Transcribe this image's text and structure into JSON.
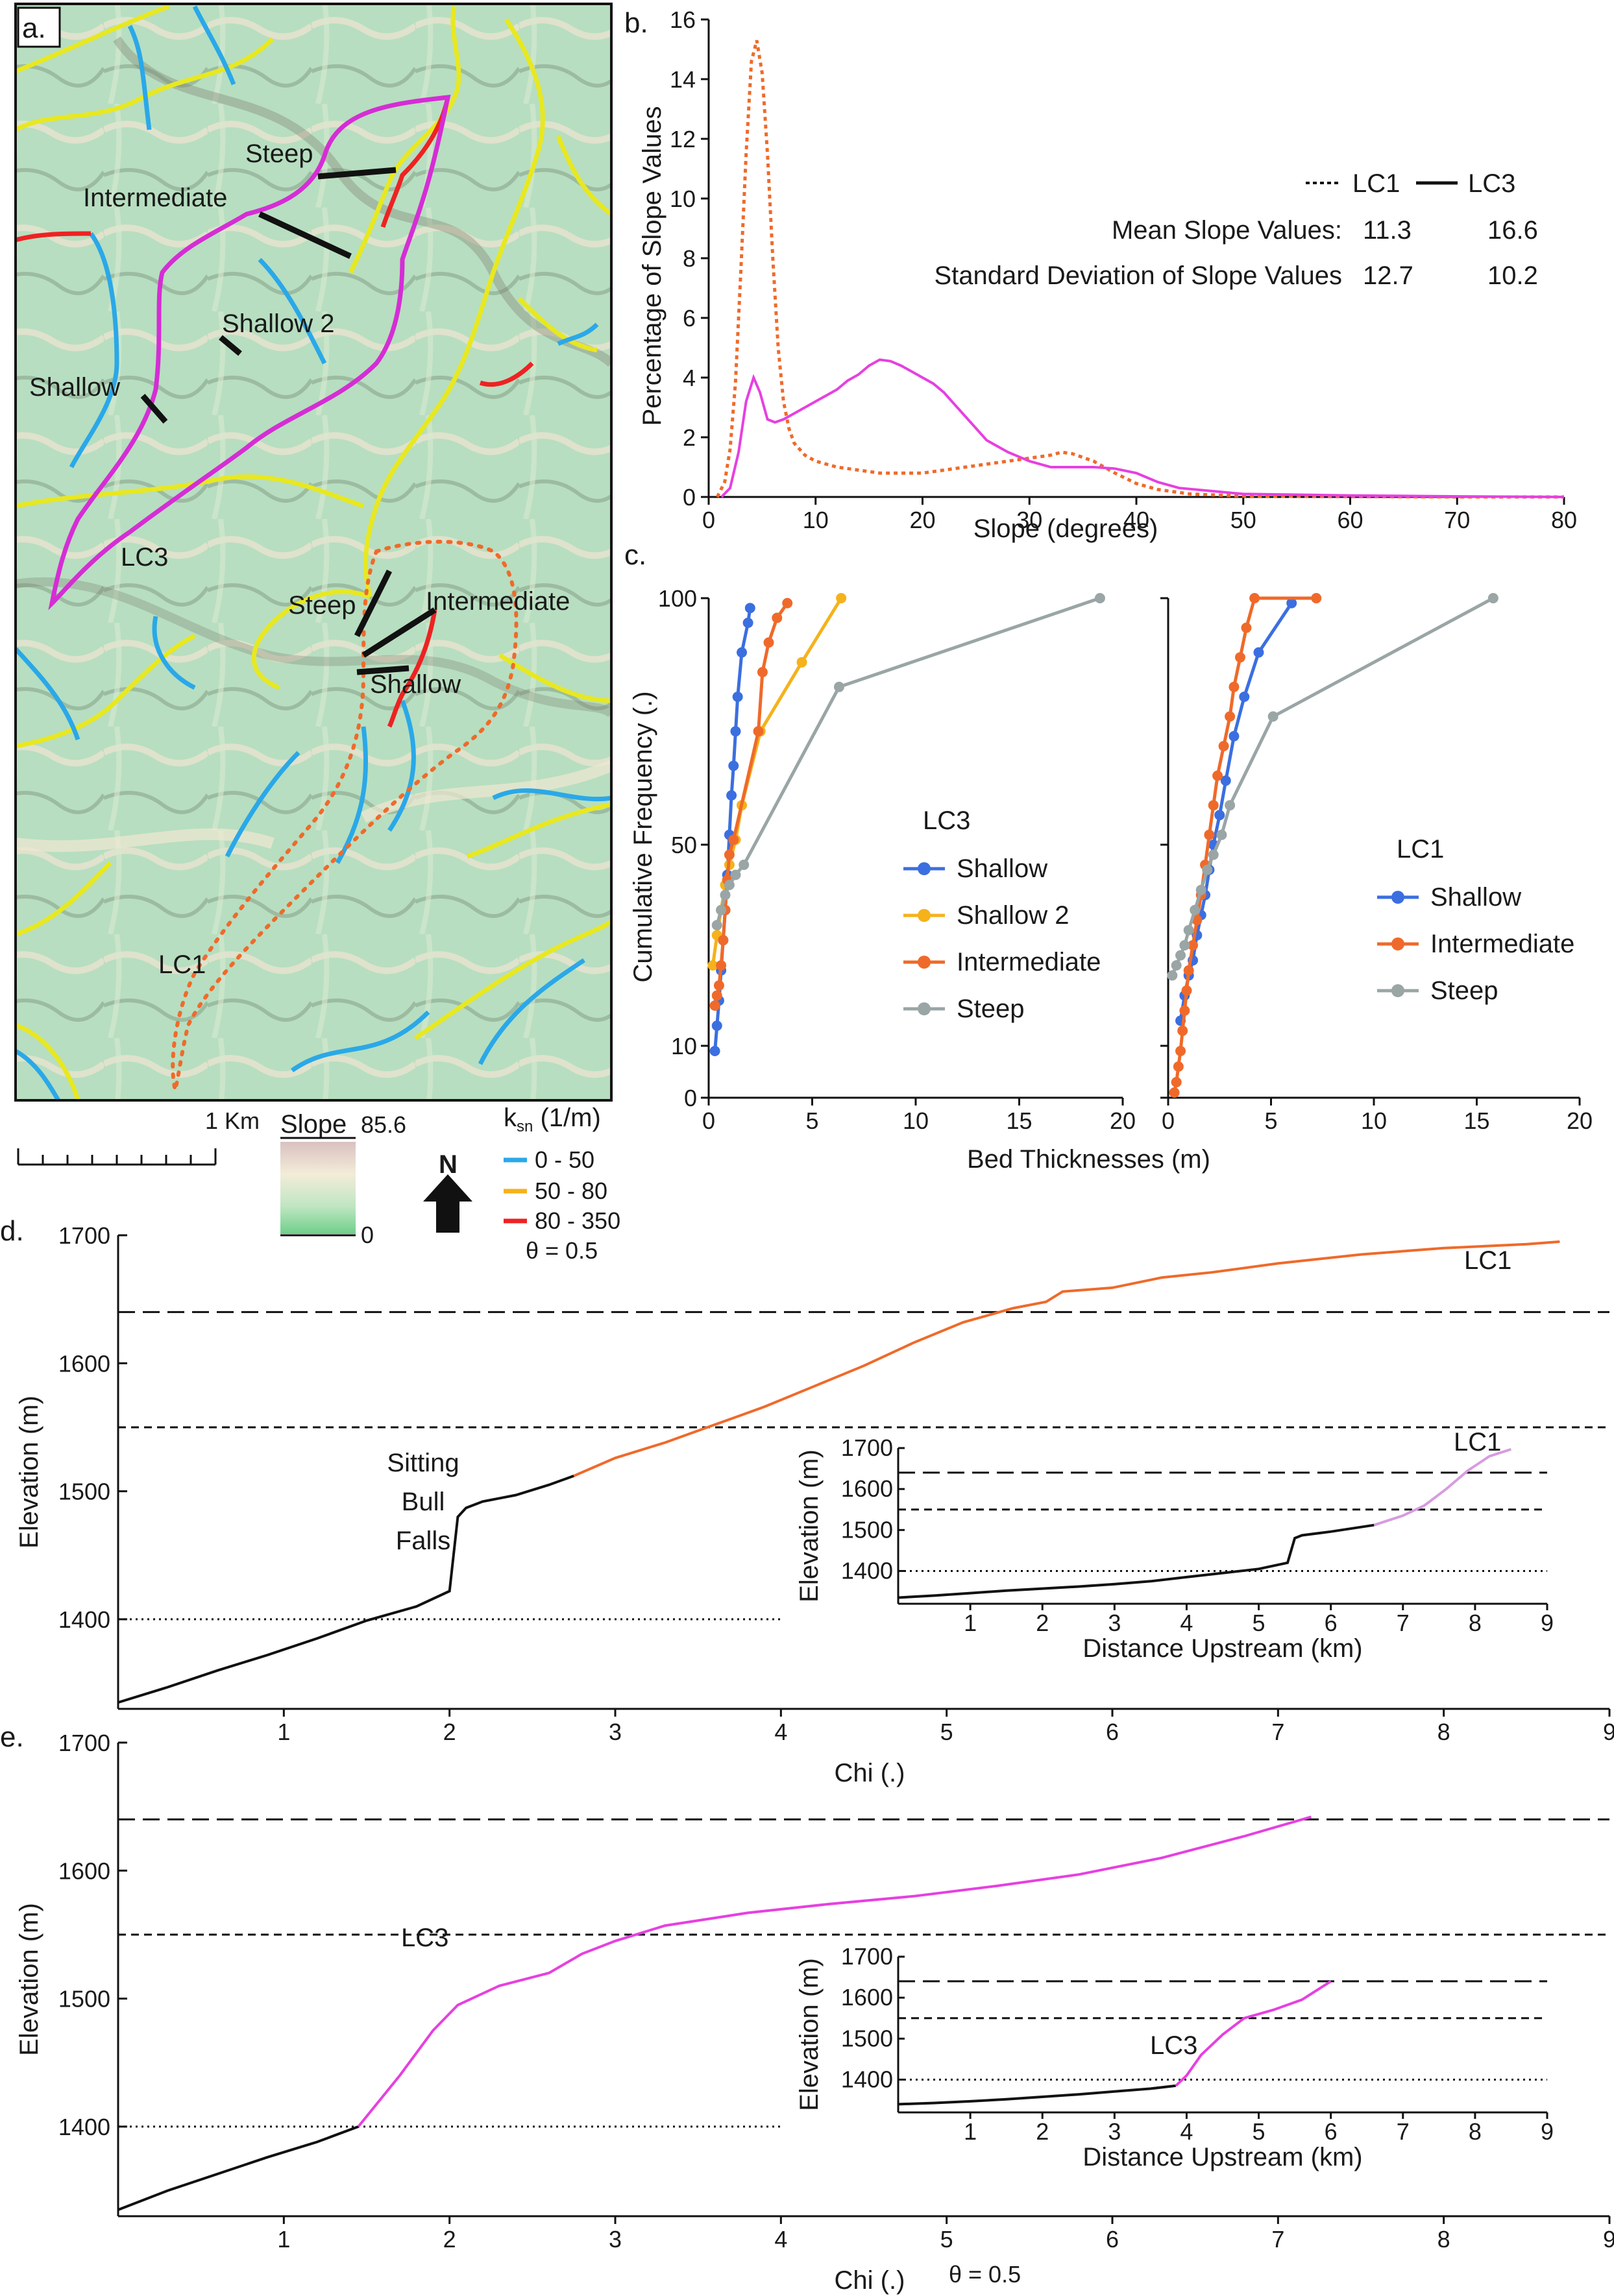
{
  "panel_labels": {
    "a": "a.",
    "b": "b.",
    "c": "c.",
    "d": "d.",
    "e": "e."
  },
  "colors": {
    "lc1": "#ef6a2a",
    "lc3": "#e640e0",
    "ksn_low": "#2aa8e8",
    "ksn_mid": "#e8e820",
    "ksn_high": "#ee2222",
    "shallow": "#3b6fe0",
    "shallow2": "#f5b21b",
    "intermediate": "#ef6a2a",
    "steep": "#9aa5a5",
    "map_bg": "#b9dfc2"
  },
  "map": {
    "labels": {
      "steep_lc3": "Steep",
      "intermediate_lc3": "Intermediate",
      "shallow2_lc3": "Shallow 2",
      "shallow_lc3": "Shallow",
      "lc3": "LC3",
      "steep_lc1": "Steep",
      "intermediate_lc1": "Intermediate",
      "shallow_lc1": "Shallow",
      "lc1": "LC1"
    },
    "scale_label": "1 Km",
    "slope_legend": {
      "title": "Slope",
      "max": "85.6",
      "min": "0"
    },
    "north": "N",
    "ksn_legend": {
      "title": "k",
      "title_sub": "sn",
      "title_unit": " (1/m)",
      "classes": [
        "0 - 50",
        "50 - 80",
        "80 - 350"
      ],
      "theta": "θ = 0.5"
    }
  },
  "chart_data": [
    {
      "id": "b",
      "type": "line",
      "xlabel": "Slope (degrees)",
      "ylabel": "Percentage of Slope Values",
      "xlim": [
        0,
        80
      ],
      "ylim": [
        0,
        16
      ],
      "xticks": [
        0,
        10,
        20,
        30,
        40,
        50,
        60,
        70,
        80
      ],
      "yticks": [
        0,
        2,
        4,
        6,
        8,
        10,
        12,
        14,
        16
      ],
      "legend": {
        "lc1": "LC1",
        "lc3": "LC3"
      },
      "stats": {
        "mean_label": "Mean Slope Values:",
        "mean_lc1": "11.3",
        "mean_lc3": "16.6",
        "sd_label": "Standard Deviation of Slope Values",
        "sd_lc1": "12.7",
        "sd_lc3": "10.2"
      },
      "series": [
        {
          "name": "LC1",
          "style": "dashed",
          "x": [
            0.8,
            1.5,
            2,
            2.5,
            3,
            3.5,
            4,
            4.5,
            5,
            5.5,
            6,
            6.5,
            7,
            7.5,
            8,
            9,
            10,
            12,
            14,
            16,
            18,
            20,
            22,
            24,
            26,
            28,
            30,
            32,
            33,
            34,
            36,
            38,
            40,
            42,
            45,
            50,
            60,
            70,
            80
          ],
          "y": [
            0,
            0.5,
            1.6,
            3.8,
            7.5,
            11.5,
            14.6,
            15.3,
            14.2,
            11.5,
            8.0,
            5.0,
            3.2,
            2.3,
            1.8,
            1.4,
            1.2,
            1.0,
            0.9,
            0.8,
            0.8,
            0.8,
            0.9,
            1.0,
            1.1,
            1.2,
            1.3,
            1.4,
            1.5,
            1.45,
            1.2,
            0.8,
            0.45,
            0.25,
            0.1,
            0.03,
            0.01,
            0,
            0
          ]
        },
        {
          "name": "LC3",
          "style": "solid",
          "x": [
            1.2,
            2,
            2.8,
            3.5,
            4.2,
            4.8,
            5.5,
            6.2,
            7,
            8,
            9,
            10,
            11,
            12,
            13,
            14,
            15,
            16,
            17,
            18,
            19,
            20,
            21,
            22,
            23,
            24,
            25,
            26,
            28,
            30,
            32,
            34,
            36,
            38,
            40,
            42,
            44,
            50,
            60,
            70,
            80
          ],
          "y": [
            0,
            0.3,
            1.5,
            3.2,
            4.0,
            3.5,
            2.6,
            2.5,
            2.6,
            2.8,
            3.0,
            3.2,
            3.4,
            3.6,
            3.9,
            4.1,
            4.4,
            4.6,
            4.55,
            4.4,
            4.2,
            4.0,
            3.8,
            3.5,
            3.1,
            2.7,
            2.3,
            1.9,
            1.5,
            1.2,
            1.0,
            1.0,
            1.0,
            0.95,
            0.8,
            0.5,
            0.3,
            0.1,
            0.05,
            0.02,
            0
          ]
        }
      ]
    },
    {
      "id": "c_lc3",
      "type": "line",
      "title": "LC3",
      "xlabel": "Bed Thicknesses (m)",
      "ylabel": "Cumulative Frequency (.)",
      "xlim": [
        0,
        20
      ],
      "xticks": [
        0,
        5,
        10,
        15,
        20
      ],
      "yticks": [
        0,
        10,
        50,
        100
      ],
      "series": [
        {
          "name": "Shallow",
          "x": [
            0.3,
            0.4,
            0.5,
            0.6,
            0.7,
            0.8,
            0.9,
            1.0,
            1.1,
            1.2,
            1.3,
            1.4,
            1.6,
            1.9,
            2.0
          ],
          "y": [
            9,
            14,
            19,
            25,
            31,
            37,
            44,
            52,
            60,
            66,
            73,
            80,
            89,
            95,
            98
          ]
        },
        {
          "name": "Shallow 2",
          "x": [
            0.2,
            0.4,
            0.6,
            0.8,
            1.0,
            1.3,
            1.6,
            2.5,
            4.5,
            6.4
          ],
          "y": [
            26,
            32,
            37,
            42,
            46,
            51,
            58,
            73,
            87,
            100
          ]
        },
        {
          "name": "Intermediate",
          "x": [
            0.3,
            0.4,
            0.5,
            0.6,
            0.7,
            0.8,
            0.9,
            1.0,
            1.2,
            2.4,
            2.6,
            2.9,
            3.3,
            3.8
          ],
          "y": [
            18,
            20,
            22,
            26,
            31,
            37,
            43,
            48,
            51,
            73,
            85,
            91,
            96,
            99
          ]
        },
        {
          "name": "Steep",
          "x": [
            0.4,
            0.6,
            0.8,
            1.0,
            1.3,
            1.7,
            6.3,
            18.9
          ],
          "y": [
            34,
            37,
            40,
            42,
            44,
            46,
            82,
            100
          ]
        }
      ]
    },
    {
      "id": "c_lc1",
      "type": "line",
      "title": "LC1",
      "xlabel": "Bed Thicknesses (m)",
      "xlim": [
        0,
        20
      ],
      "xticks": [
        0,
        5,
        10,
        15,
        20
      ],
      "yticks": [
        0,
        10,
        50,
        100
      ],
      "series": [
        {
          "name": "Shallow",
          "x": [
            0.6,
            0.8,
            1.0,
            1.2,
            1.4,
            1.6,
            1.8,
            2.0,
            2.2,
            2.5,
            2.8,
            3.2,
            3.7,
            4.4,
            6.0
          ],
          "y": [
            15,
            20,
            24,
            27,
            32,
            36,
            40,
            45,
            50,
            56,
            63,
            72,
            80,
            89,
            99
          ]
        },
        {
          "name": "Intermediate",
          "x": [
            0.3,
            0.4,
            0.5,
            0.6,
            0.7,
            0.8,
            0.9,
            1.0,
            1.2,
            1.4,
            1.6,
            1.8,
            2.0,
            2.2,
            2.4,
            2.7,
            3.0,
            3.2,
            3.5,
            3.8,
            4.2,
            7.2
          ],
          "y": [
            1,
            3,
            6,
            9,
            13,
            17,
            21,
            25,
            30,
            35,
            40,
            46,
            52,
            58,
            64,
            70,
            76,
            82,
            88,
            94,
            100,
            100
          ]
        },
        {
          "name": "Steep",
          "x": [
            0.2,
            0.4,
            0.6,
            0.8,
            1.0,
            1.3,
            1.6,
            1.9,
            2.2,
            2.6,
            3.0,
            5.1,
            15.8
          ],
          "y": [
            24,
            26,
            28,
            30,
            33,
            37,
            41,
            45,
            48,
            52,
            58,
            76,
            100
          ]
        }
      ]
    },
    {
      "id": "d",
      "type": "line",
      "xlabel": "Chi (.)",
      "ylabel": "Elevation (m)",
      "xlim": [
        0,
        9
      ],
      "ylim": [
        1330,
        1700
      ],
      "xticks": [
        1,
        2,
        3,
        4,
        5,
        6,
        7,
        8,
        9
      ],
      "yticks": [
        1400,
        1500,
        1600,
        1700
      ],
      "reference_lines": [
        {
          "y": 1640,
          "style": "longdash",
          "x_end": 9
        },
        {
          "y": 1550,
          "style": "dashed",
          "x_end": 9
        },
        {
          "y": 1400,
          "style": "dotted",
          "x_end": 4
        }
      ],
      "annotations": {
        "knickpoint": [
          "Sitting",
          "Bull",
          "Falls"
        ],
        "label": "LC1"
      },
      "series": [
        {
          "name": "LC1 lower",
          "color": "black",
          "x": [
            0,
            0.3,
            0.6,
            0.9,
            1.2,
            1.5,
            1.8,
            2.0,
            2.05,
            2.1,
            2.2,
            2.4,
            2.6,
            2.75
          ],
          "y": [
            1335,
            1347,
            1360,
            1372,
            1385,
            1399,
            1410,
            1422,
            1480,
            1487,
            1492,
            1497,
            1505,
            1512
          ]
        },
        {
          "name": "LC1 upper",
          "color": "orange",
          "x": [
            2.75,
            3.0,
            3.3,
            3.6,
            3.9,
            4.2,
            4.5,
            4.8,
            5.1,
            5.4,
            5.6,
            5.7,
            6.0,
            6.3,
            6.6,
            7.0,
            7.5,
            8.0,
            8.5,
            8.7
          ],
          "y": [
            1512,
            1526,
            1538,
            1552,
            1566,
            1582,
            1598,
            1616,
            1632,
            1643,
            1648,
            1656,
            1659,
            1667,
            1671,
            1678,
            1685,
            1690,
            1693,
            1695
          ]
        }
      ],
      "inset": {
        "xlabel": "Distance Upstream (km)",
        "ylabel": "Elevation (m)",
        "xlim": [
          0,
          9
        ],
        "ylim": [
          1320,
          1700
        ],
        "xticks": [
          1,
          2,
          3,
          4,
          5,
          6,
          7,
          8,
          9
        ],
        "yticks": [
          1400,
          1500,
          1600,
          1700
        ],
        "label": "LC1",
        "series": [
          {
            "name": "LC1 lower",
            "color": "black",
            "x": [
              0,
              0.5,
              1,
              1.5,
              2,
              2.5,
              3,
              3.5,
              4,
              4.5,
              5,
              5.4,
              5.5,
              5.6,
              6,
              6.6
            ],
            "y": [
              1335,
              1340,
              1346,
              1352,
              1357,
              1362,
              1368,
              1375,
              1385,
              1395,
              1405,
              1420,
              1480,
              1487,
              1496,
              1512
            ]
          },
          {
            "name": "LC1 upper",
            "color": "violet",
            "x": [
              6.6,
              7.0,
              7.3,
              7.6,
              7.9,
              8.2,
              8.5
            ],
            "y": [
              1512,
              1535,
              1560,
              1600,
              1645,
              1680,
              1697
            ]
          }
        ]
      }
    },
    {
      "id": "e",
      "type": "line",
      "xlabel": "Chi (.)",
      "ylabel": "Elevation (m)",
      "xlim": [
        0,
        9
      ],
      "ylim": [
        1330,
        1700
      ],
      "xticks": [
        1,
        2,
        3,
        4,
        5,
        6,
        7,
        8,
        9
      ],
      "yticks": [
        1400,
        1500,
        1600,
        1700
      ],
      "reference_lines": [
        {
          "y": 1640,
          "style": "longdash",
          "x_end": 9
        },
        {
          "y": 1550,
          "style": "dashed",
          "x_end": 9
        },
        {
          "y": 1400,
          "style": "dotted",
          "x_end": 4
        }
      ],
      "annotations": {
        "label": "LC3",
        "theta": "θ = 0.5"
      },
      "series": [
        {
          "name": "LC3 lower",
          "color": "black",
          "x": [
            0,
            0.3,
            0.6,
            0.9,
            1.2,
            1.45
          ],
          "y": [
            1335,
            1350,
            1363,
            1376,
            1388,
            1400
          ]
        },
        {
          "name": "LC3 upper",
          "color": "magenta",
          "x": [
            1.45,
            1.7,
            1.9,
            2.05,
            2.3,
            2.6,
            2.8,
            3.0,
            3.3,
            3.8,
            4.3,
            4.8,
            5.3,
            5.8,
            6.3,
            6.8,
            7.2
          ],
          "y": [
            1400,
            1440,
            1475,
            1495,
            1510,
            1520,
            1535,
            1545,
            1557,
            1567,
            1574,
            1580,
            1588,
            1597,
            1610,
            1627,
            1642
          ]
        }
      ],
      "inset": {
        "xlabel": "Distance Upstream (km)",
        "ylabel": "Elevation (m)",
        "xlim": [
          0,
          9
        ],
        "ylim": [
          1320,
          1700
        ],
        "xticks": [
          1,
          2,
          3,
          4,
          5,
          6,
          7,
          8,
          9
        ],
        "yticks": [
          1400,
          1500,
          1600,
          1700
        ],
        "label": "LC3",
        "series": [
          {
            "name": "LC3 lower",
            "color": "black",
            "x": [
              0,
              0.5,
              1,
              1.5,
              2,
              2.5,
              3,
              3.5,
              3.85
            ],
            "y": [
              1340,
              1343,
              1347,
              1352,
              1358,
              1364,
              1371,
              1378,
              1385
            ]
          },
          {
            "name": "LC3 upper",
            "color": "magenta",
            "x": [
              3.85,
              4.0,
              4.2,
              4.5,
              4.8,
              5.2,
              5.6,
              6.0
            ],
            "y": [
              1385,
              1410,
              1460,
              1510,
              1550,
              1570,
              1595,
              1640
            ]
          }
        ]
      }
    }
  ]
}
